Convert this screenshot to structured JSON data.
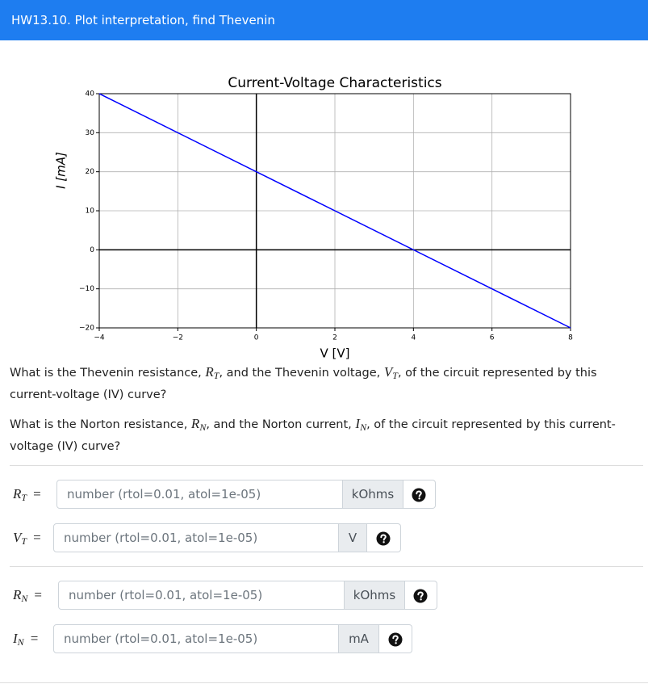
{
  "header": {
    "title": "HW13.10. Plot interpretation, find Thevenin"
  },
  "chart_data": {
    "type": "line",
    "title": "Current-Voltage Characteristics",
    "x_label": "V [V]",
    "y_label": "I [mA]",
    "x": [
      -4,
      8
    ],
    "series": [
      {
        "color": "#0000ff",
        "values": [
          40,
          -20
        ]
      }
    ],
    "xlim": [
      -4,
      8
    ],
    "ylim": [
      -20,
      40
    ],
    "xticks": [
      {
        "value": -4,
        "label": "−4"
      },
      {
        "value": -2,
        "label": "−2"
      },
      0,
      2,
      4,
      6,
      8
    ],
    "yticks": [
      {
        "value": -20,
        "label": "−20"
      },
      {
        "value": -10,
        "label": "−10"
      },
      0,
      10,
      20,
      30,
      40
    ],
    "grid": true
  },
  "question": {
    "paragraphs": [
      [
        "What is the Thevenin resistance, ",
        {
          "var": "R",
          "sub": "T"
        },
        ", and the Thevenin voltage, ",
        {
          "var": "V",
          "sub": "T"
        },
        ", of the circuit represented by this current-voltage (IV) curve?"
      ],
      [
        "What is the Norton resistance, ",
        {
          "var": "R",
          "sub": "N"
        },
        ", and the Norton current, ",
        {
          "var": "I",
          "sub": "N"
        },
        ", of the circuit represented by this current-voltage (IV) curve?"
      ]
    ]
  },
  "inputs": [
    {
      "var": "R",
      "sub": "T",
      "eq": "=",
      "placeholder": "number (rtol=0.01, atol=1e-05)",
      "unit": "kOhms"
    },
    {
      "var": "V",
      "sub": "T",
      "eq": "=",
      "placeholder": "number (rtol=0.01, atol=1e-05)",
      "unit": "V"
    },
    {
      "var": "R",
      "sub": "N",
      "eq": "=",
      "placeholder": "number (rtol=0.01, atol=1e-05)",
      "unit": "kOhms"
    },
    {
      "var": "I",
      "sub": "N",
      "eq": "=",
      "placeholder": "number (rtol=0.01, atol=1e-05)",
      "unit": "mA"
    }
  ]
}
